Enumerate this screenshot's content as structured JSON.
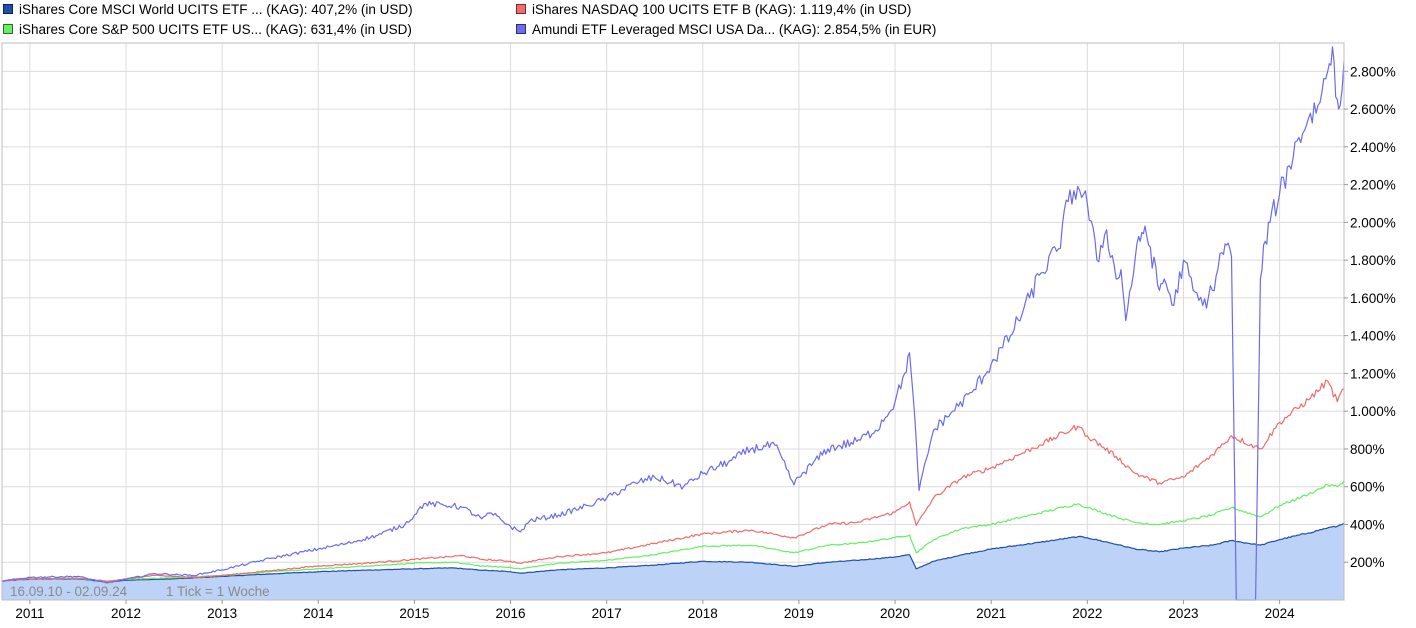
{
  "legend": [
    {
      "label": "iShares Core MSCI World UCITS ETF ... (KAG): 407,2% (in USD)",
      "color": "#1f4fa8"
    },
    {
      "label": "iShares NASDAQ 100 UCITS ETF B (KAG): 1.119,4% (in USD)",
      "color": "#f26b6b"
    },
    {
      "label": "iShares Core S&P 500 UCITS ETF US... (KAG): 631,4% (in USD)",
      "color": "#66ee66"
    },
    {
      "label": "Amundi ETF Leveraged MSCI USA Da... (KAG): 2.854,5% (in EUR)",
      "color": "#6b6bf0"
    }
  ],
  "footer": {
    "range": "16.09.10 - 02.09.24",
    "tick": "1 Tick = 1 Woche"
  },
  "chart_data": {
    "type": "line",
    "x_ticks": [
      "2011",
      "2012",
      "2013",
      "2014",
      "2015",
      "2016",
      "2017",
      "2018",
      "2019",
      "2020",
      "2021",
      "2022",
      "2023",
      "2024"
    ],
    "y_ticks": [
      "200%",
      "400%",
      "600%",
      "800%",
      "1.000%",
      "1.200%",
      "1.400%",
      "1.600%",
      "1.800%",
      "2.000%",
      "2.200%",
      "2.400%",
      "2.600%",
      "2.800%"
    ],
    "xlim": [
      2010.71,
      2024.67
    ],
    "ylim": [
      0,
      2950
    ],
    "grid": true,
    "legend_position": "top",
    "series": [
      {
        "name": "iShares Core MSCI World UCITS ETF ... (KAG): 407,2% (in USD)",
        "color": "#1f4fa8",
        "fill": "#bcd3f7",
        "points": [
          [
            2010.71,
            100
          ],
          [
            2011.0,
            110
          ],
          [
            2011.5,
            112
          ],
          [
            2011.8,
            95
          ],
          [
            2012.0,
            105
          ],
          [
            2012.5,
            112
          ],
          [
            2013.0,
            125
          ],
          [
            2013.5,
            138
          ],
          [
            2014.0,
            150
          ],
          [
            2014.5,
            158
          ],
          [
            2015.0,
            165
          ],
          [
            2015.4,
            170
          ],
          [
            2015.7,
            158
          ],
          [
            2016.0,
            150
          ],
          [
            2016.1,
            142
          ],
          [
            2016.5,
            160
          ],
          [
            2017.0,
            170
          ],
          [
            2017.5,
            185
          ],
          [
            2018.0,
            205
          ],
          [
            2018.5,
            200
          ],
          [
            2018.95,
            178
          ],
          [
            2019.3,
            200
          ],
          [
            2019.6,
            210
          ],
          [
            2020.0,
            228
          ],
          [
            2020.15,
            240
          ],
          [
            2020.22,
            165
          ],
          [
            2020.4,
            205
          ],
          [
            2020.7,
            240
          ],
          [
            2021.0,
            270
          ],
          [
            2021.5,
            305
          ],
          [
            2021.9,
            335
          ],
          [
            2022.0,
            330
          ],
          [
            2022.3,
            295
          ],
          [
            2022.5,
            270
          ],
          [
            2022.75,
            255
          ],
          [
            2023.0,
            275
          ],
          [
            2023.3,
            290
          ],
          [
            2023.5,
            315
          ],
          [
            2023.8,
            290
          ],
          [
            2024.0,
            320
          ],
          [
            2024.3,
            355
          ],
          [
            2024.5,
            382
          ],
          [
            2024.6,
            390
          ],
          [
            2024.67,
            407
          ]
        ]
      },
      {
        "name": "iShares NASDAQ 100 UCITS ETF B (KAG): 1.119,4% (in USD)",
        "color": "#f26b6b",
        "points": [
          [
            2010.71,
            100
          ],
          [
            2011.0,
            112
          ],
          [
            2011.5,
            115
          ],
          [
            2011.8,
            100
          ],
          [
            2012.0,
            112
          ],
          [
            2012.3,
            130
          ],
          [
            2012.7,
            120
          ],
          [
            2013.0,
            130
          ],
          [
            2013.5,
            155
          ],
          [
            2014.0,
            180
          ],
          [
            2014.5,
            195
          ],
          [
            2015.0,
            215
          ],
          [
            2015.5,
            235
          ],
          [
            2015.7,
            215
          ],
          [
            2016.0,
            205
          ],
          [
            2016.1,
            195
          ],
          [
            2016.5,
            230
          ],
          [
            2017.0,
            250
          ],
          [
            2017.5,
            300
          ],
          [
            2018.0,
            350
          ],
          [
            2018.5,
            370
          ],
          [
            2018.95,
            330
          ],
          [
            2019.3,
            400
          ],
          [
            2019.6,
            410
          ],
          [
            2020.0,
            465
          ],
          [
            2020.15,
            520
          ],
          [
            2020.22,
            395
          ],
          [
            2020.4,
            540
          ],
          [
            2020.7,
            650
          ],
          [
            2021.0,
            700
          ],
          [
            2021.5,
            820
          ],
          [
            2021.9,
            920
          ],
          [
            2022.0,
            870
          ],
          [
            2022.3,
            760
          ],
          [
            2022.5,
            670
          ],
          [
            2022.75,
            620
          ],
          [
            2023.0,
            650
          ],
          [
            2023.3,
            770
          ],
          [
            2023.5,
            870
          ],
          [
            2023.8,
            800
          ],
          [
            2024.0,
            940
          ],
          [
            2024.3,
            1060
          ],
          [
            2024.5,
            1160
          ],
          [
            2024.6,
            1050
          ],
          [
            2024.67,
            1119
          ]
        ]
      },
      {
        "name": "iShares Core S&P 500 UCITS ETF US... (KAG): 631,4% (in USD)",
        "color": "#66ee66",
        "points": [
          [
            2010.71,
            100
          ],
          [
            2011.0,
            112
          ],
          [
            2011.5,
            115
          ],
          [
            2011.8,
            98
          ],
          [
            2012.0,
            110
          ],
          [
            2012.5,
            118
          ],
          [
            2013.0,
            130
          ],
          [
            2013.5,
            150
          ],
          [
            2014.0,
            165
          ],
          [
            2014.5,
            180
          ],
          [
            2015.0,
            195
          ],
          [
            2015.4,
            200
          ],
          [
            2015.7,
            180
          ],
          [
            2016.0,
            172
          ],
          [
            2016.1,
            165
          ],
          [
            2016.5,
            195
          ],
          [
            2017.0,
            210
          ],
          [
            2017.5,
            240
          ],
          [
            2018.0,
            285
          ],
          [
            2018.5,
            290
          ],
          [
            2018.95,
            250
          ],
          [
            2019.3,
            290
          ],
          [
            2019.6,
            300
          ],
          [
            2020.0,
            330
          ],
          [
            2020.15,
            345
          ],
          [
            2020.22,
            250
          ],
          [
            2020.4,
            320
          ],
          [
            2020.7,
            380
          ],
          [
            2021.0,
            400
          ],
          [
            2021.5,
            460
          ],
          [
            2021.9,
            510
          ],
          [
            2022.0,
            490
          ],
          [
            2022.3,
            440
          ],
          [
            2022.5,
            410
          ],
          [
            2022.75,
            400
          ],
          [
            2023.0,
            420
          ],
          [
            2023.3,
            450
          ],
          [
            2023.5,
            490
          ],
          [
            2023.8,
            440
          ],
          [
            2024.0,
            500
          ],
          [
            2024.3,
            560
          ],
          [
            2024.5,
            610
          ],
          [
            2024.6,
            600
          ],
          [
            2024.67,
            631
          ]
        ]
      },
      {
        "name": "Amundi ETF Leveraged MSCI USA Da... (KAG): 2.854,5% (in EUR)",
        "color": "#6b6bf0",
        "points": [
          [
            2010.71,
            100
          ],
          [
            2011.0,
            120
          ],
          [
            2011.5,
            125
          ],
          [
            2011.8,
            90
          ],
          [
            2012.0,
            110
          ],
          [
            2012.3,
            140
          ],
          [
            2012.7,
            130
          ],
          [
            2013.0,
            160
          ],
          [
            2013.5,
            220
          ],
          [
            2014.0,
            270
          ],
          [
            2014.3,
            300
          ],
          [
            2014.6,
            340
          ],
          [
            2014.9,
            400
          ],
          [
            2015.0,
            450
          ],
          [
            2015.1,
            510
          ],
          [
            2015.4,
            500
          ],
          [
            2015.5,
            490
          ],
          [
            2015.7,
            430
          ],
          [
            2015.8,
            460
          ],
          [
            2016.0,
            390
          ],
          [
            2016.1,
            360
          ],
          [
            2016.2,
            420
          ],
          [
            2016.5,
            450
          ],
          [
            2016.8,
            500
          ],
          [
            2017.0,
            540
          ],
          [
            2017.3,
            620
          ],
          [
            2017.5,
            650
          ],
          [
            2017.8,
            600
          ],
          [
            2018.0,
            670
          ],
          [
            2018.3,
            740
          ],
          [
            2018.5,
            800
          ],
          [
            2018.75,
            820
          ],
          [
            2018.95,
            610
          ],
          [
            2019.0,
            650
          ],
          [
            2019.3,
            800
          ],
          [
            2019.6,
            840
          ],
          [
            2019.8,
            900
          ],
          [
            2020.0,
            1050
          ],
          [
            2020.1,
            1200
          ],
          [
            2020.15,
            1310
          ],
          [
            2020.22,
            850
          ],
          [
            2020.25,
            580
          ],
          [
            2020.4,
            900
          ],
          [
            2020.6,
            1000
          ],
          [
            2020.8,
            1100
          ],
          [
            2021.0,
            1250
          ],
          [
            2021.2,
            1400
          ],
          [
            2021.4,
            1600
          ],
          [
            2021.5,
            1720
          ],
          [
            2021.7,
            1860
          ],
          [
            2021.8,
            2110
          ],
          [
            2021.9,
            2190
          ],
          [
            2022.0,
            2100
          ],
          [
            2022.1,
            1800
          ],
          [
            2022.2,
            1960
          ],
          [
            2022.3,
            1700
          ],
          [
            2022.35,
            1750
          ],
          [
            2022.4,
            1480
          ],
          [
            2022.5,
            1820
          ],
          [
            2022.55,
            1900
          ],
          [
            2022.6,
            1980
          ],
          [
            2022.75,
            1640
          ],
          [
            2022.8,
            1700
          ],
          [
            2022.9,
            1560
          ],
          [
            2023.0,
            1800
          ],
          [
            2023.1,
            1640
          ],
          [
            2023.2,
            1560
          ],
          [
            2023.3,
            1640
          ],
          [
            2023.4,
            1840
          ],
          [
            2023.45,
            1880
          ],
          [
            2023.5,
            1820
          ],
          [
            2023.55,
            0
          ],
          [
            2023.75,
            0
          ],
          [
            2023.8,
            1700
          ],
          [
            2023.85,
            1900
          ],
          [
            2023.9,
            2000
          ],
          [
            2024.0,
            2150
          ],
          [
            2024.1,
            2300
          ],
          [
            2024.2,
            2450
          ],
          [
            2024.3,
            2550
          ],
          [
            2024.4,
            2620
          ],
          [
            2024.5,
            2800
          ],
          [
            2024.55,
            2930
          ],
          [
            2024.6,
            2650
          ],
          [
            2024.63,
            2620
          ],
          [
            2024.67,
            2854
          ]
        ]
      }
    ]
  }
}
